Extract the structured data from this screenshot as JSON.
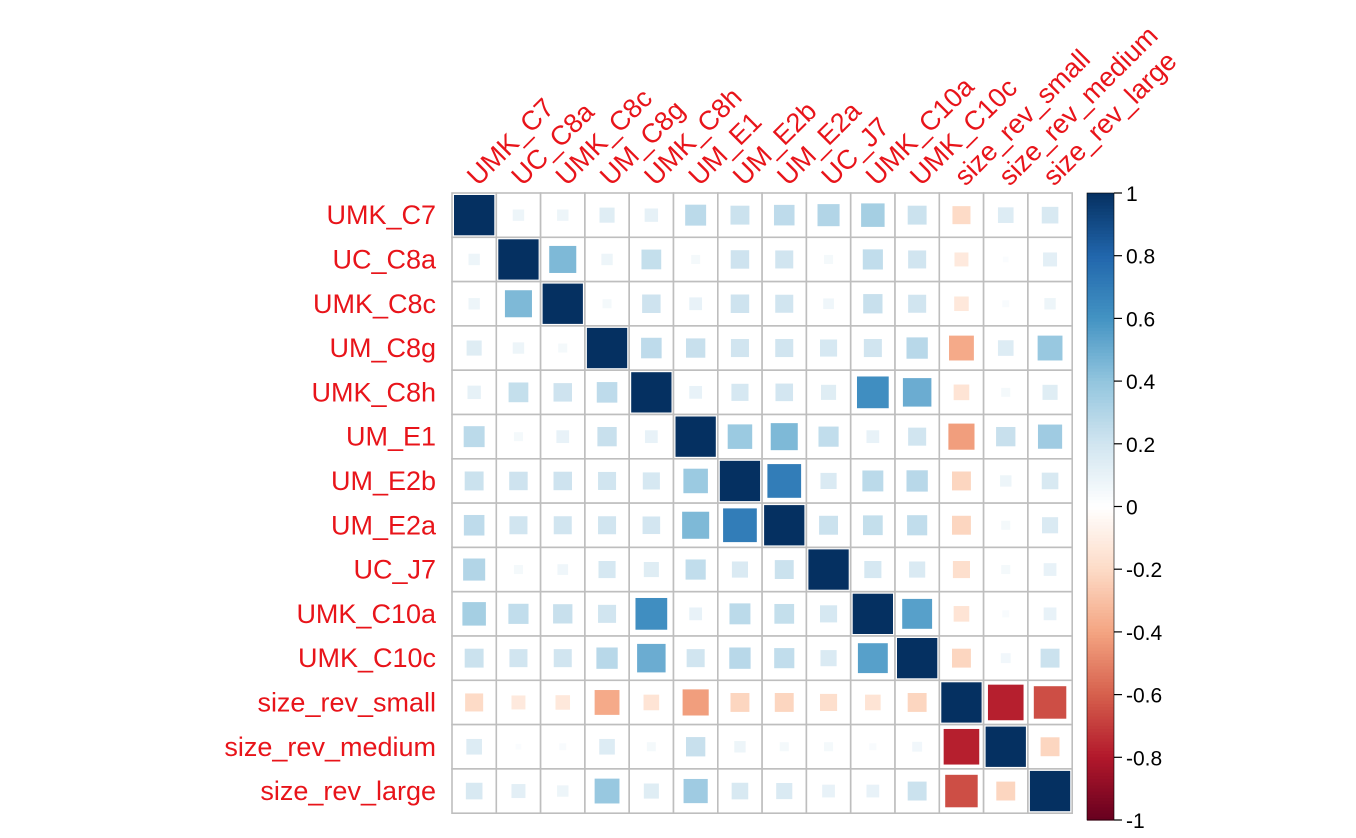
{
  "chart_data": {
    "type": "heatmap",
    "title": "",
    "variables": [
      "UMK_C7",
      "UC_C8a",
      "UMK_C8c",
      "UM_C8g",
      "UMK_C8h",
      "UM_E1",
      "UM_E2b",
      "UM_E2a",
      "UC_J7",
      "UMK_C10a",
      "UMK_C10c",
      "size_rev_small",
      "size_rev_medium",
      "size_rev_large"
    ],
    "matrix": [
      [
        1.0,
        0.08,
        0.08,
        0.14,
        0.11,
        0.27,
        0.22,
        0.26,
        0.3,
        0.34,
        0.22,
        -0.2,
        0.15,
        0.17
      ],
      [
        0.08,
        1.0,
        0.45,
        0.08,
        0.24,
        0.05,
        0.21,
        0.2,
        0.05,
        0.25,
        0.2,
        -0.12,
        0.02,
        0.12
      ],
      [
        0.08,
        0.45,
        1.0,
        0.05,
        0.21,
        0.1,
        0.21,
        0.2,
        0.07,
        0.23,
        0.2,
        -0.13,
        0.03,
        0.08
      ],
      [
        0.14,
        0.08,
        0.05,
        1.0,
        0.26,
        0.23,
        0.2,
        0.2,
        0.18,
        0.2,
        0.28,
        -0.38,
        0.15,
        0.38
      ],
      [
        0.11,
        0.24,
        0.21,
        0.26,
        1.0,
        0.1,
        0.18,
        0.19,
        0.14,
        0.62,
        0.5,
        -0.15,
        0.05,
        0.14
      ],
      [
        0.27,
        0.05,
        0.1,
        0.23,
        0.1,
        1.0,
        0.37,
        0.45,
        0.25,
        0.1,
        0.2,
        -0.42,
        0.23,
        0.36
      ],
      [
        0.22,
        0.21,
        0.21,
        0.2,
        0.18,
        0.37,
        1.0,
        0.7,
        0.16,
        0.27,
        0.28,
        -0.22,
        0.08,
        0.17
      ],
      [
        0.26,
        0.2,
        0.2,
        0.2,
        0.19,
        0.45,
        0.7,
        1.0,
        0.22,
        0.24,
        0.25,
        -0.22,
        0.05,
        0.16
      ],
      [
        0.3,
        0.05,
        0.07,
        0.18,
        0.14,
        0.25,
        0.16,
        0.22,
        1.0,
        0.18,
        0.16,
        -0.18,
        0.05,
        0.1
      ],
      [
        0.34,
        0.25,
        0.23,
        0.2,
        0.62,
        0.1,
        0.27,
        0.24,
        0.18,
        1.0,
        0.55,
        -0.15,
        0.03,
        0.1
      ],
      [
        0.22,
        0.2,
        0.2,
        0.28,
        0.5,
        0.2,
        0.28,
        0.25,
        0.16,
        0.55,
        1.0,
        -0.22,
        0.06,
        0.22
      ],
      [
        -0.2,
        -0.12,
        -0.13,
        -0.38,
        -0.15,
        -0.42,
        -0.22,
        -0.22,
        -0.18,
        -0.15,
        -0.22,
        1.0,
        -0.78,
        -0.65
      ],
      [
        0.15,
        0.02,
        0.03,
        0.15,
        0.05,
        0.23,
        0.08,
        0.05,
        0.05,
        0.03,
        0.06,
        -0.78,
        1.0,
        -0.22
      ],
      [
        0.17,
        0.12,
        0.08,
        0.38,
        0.14,
        0.36,
        0.17,
        0.16,
        0.1,
        0.1,
        0.22,
        -0.65,
        -0.22,
        1.0
      ]
    ],
    "colorbar": {
      "range": [
        -1,
        1
      ],
      "ticks": [
        "1",
        "0.8",
        "0.6",
        "0.4",
        "0.2",
        "0",
        "-0.2",
        "-0.4",
        "-0.6",
        "-0.8",
        "-1"
      ],
      "tick_values": [
        1,
        0.8,
        0.6,
        0.4,
        0.2,
        0,
        -0.2,
        -0.4,
        -0.6,
        -0.8,
        -1
      ],
      "palette": [
        "#67001F",
        "#B2182B",
        "#D6604D",
        "#F4A582",
        "#FDDBC7",
        "#FFFFFF",
        "#D1E5F0",
        "#92C5DE",
        "#4393C3",
        "#2166AC",
        "#053061"
      ]
    },
    "label_color": "#E8141A",
    "grid_color": "#BEBEBE",
    "legend_position": "right",
    "method": "square"
  }
}
